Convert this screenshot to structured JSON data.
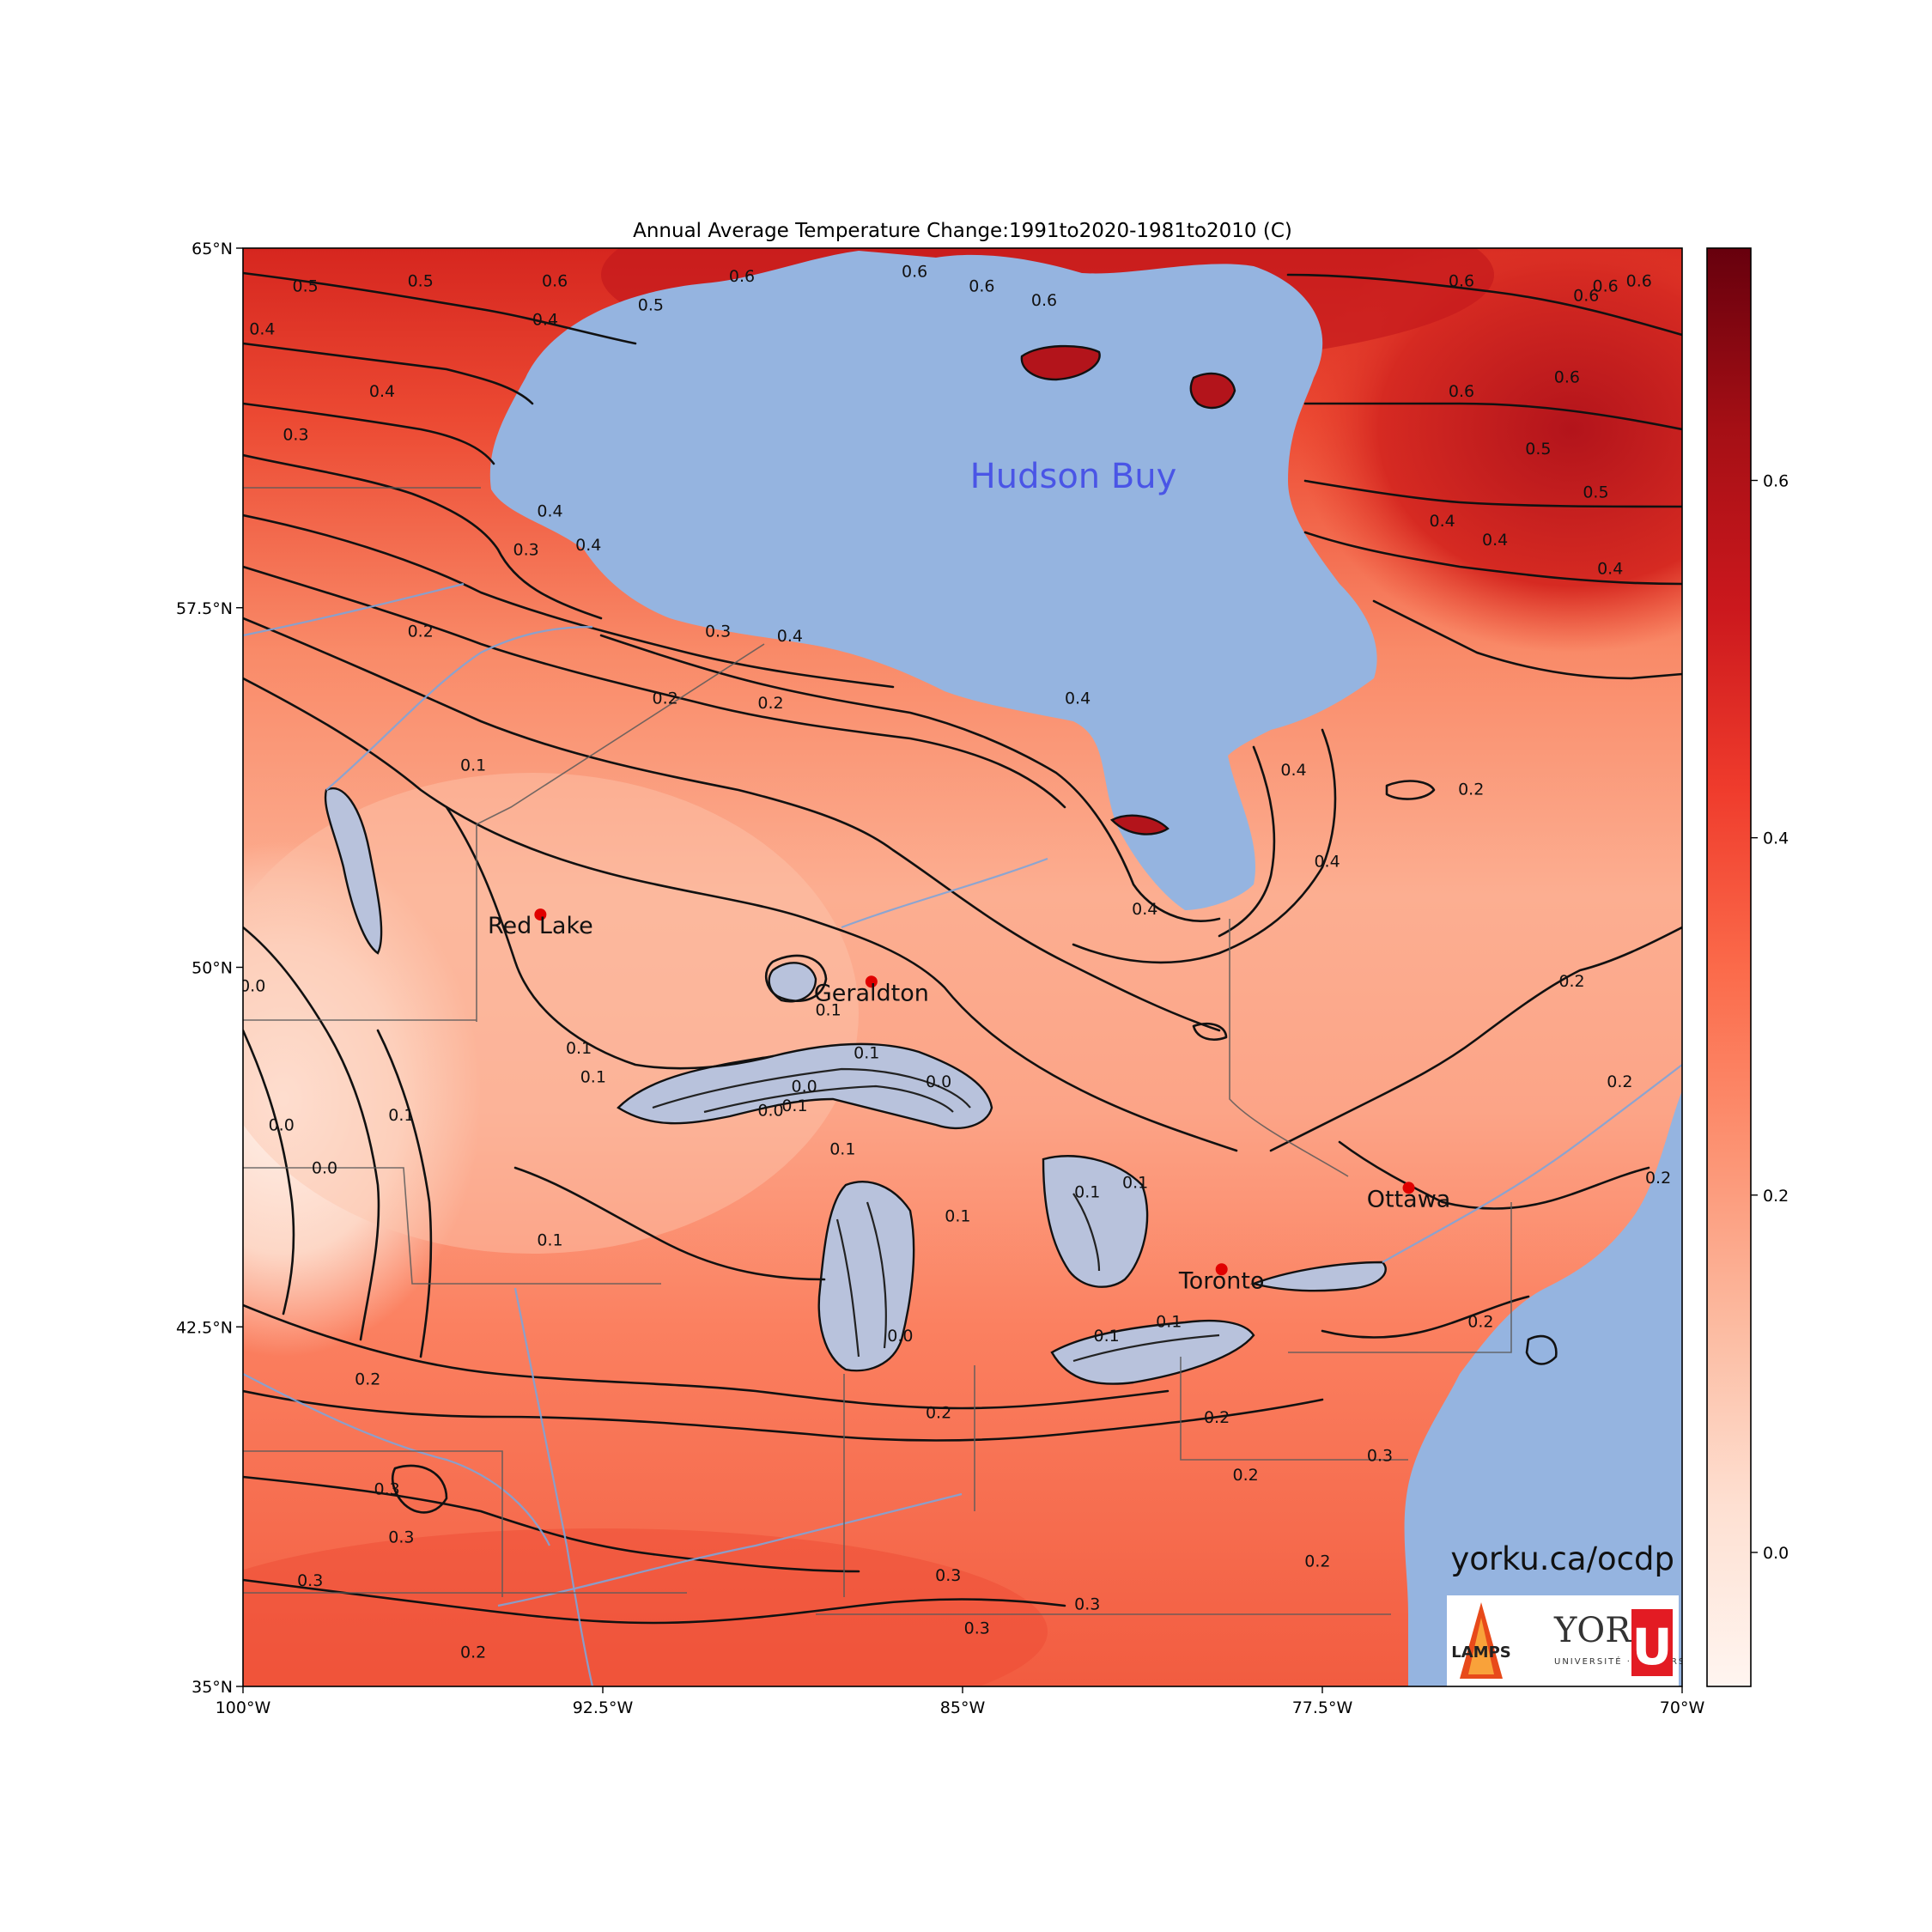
{
  "title": "Annual Average Temperature Change:1991to2020-1981to2010 (C)",
  "map": {
    "lon_range": [
      -100,
      -70
    ],
    "lat_range": [
      35,
      65
    ],
    "x_ticks": [
      {
        "value": -100,
        "label": "100°W"
      },
      {
        "value": -92.5,
        "label": "92.5°W"
      },
      {
        "value": -85,
        "label": "85°W"
      },
      {
        "value": -77.5,
        "label": "77.5°W"
      },
      {
        "value": -70,
        "label": "70°W"
      }
    ],
    "y_ticks": [
      {
        "value": 35,
        "label": "35°N"
      },
      {
        "value": 42.5,
        "label": "42.5°N"
      },
      {
        "value": 50,
        "label": "50°N"
      },
      {
        "value": 57.5,
        "label": "57.5°N"
      },
      {
        "value": 65,
        "label": "65°N"
      }
    ],
    "cities": [
      {
        "name": "Red Lake",
        "lon": -93.8,
        "lat": 51.1
      },
      {
        "name": "Geraldton",
        "lon": -86.9,
        "lat": 49.7
      },
      {
        "name": "Ottawa",
        "lon": -75.7,
        "lat": 45.4
      },
      {
        "name": "Toronto",
        "lon": -79.6,
        "lat": 43.7
      }
    ],
    "water_label": "Hudson Buy",
    "contour_labels": [
      {
        "text": "0.5",
        "lon": -98.7,
        "lat": 64.1
      },
      {
        "text": "0.5",
        "lon": -96.3,
        "lat": 64.2
      },
      {
        "text": "0.6",
        "lon": -93.5,
        "lat": 64.2
      },
      {
        "text": "0.5",
        "lon": -91.5,
        "lat": 63.7
      },
      {
        "text": "0.4",
        "lon": -99.6,
        "lat": 63.2
      },
      {
        "text": "0.4",
        "lon": -93.7,
        "lat": 63.4
      },
      {
        "text": "0.6",
        "lon": -89.6,
        "lat": 64.3
      },
      {
        "text": "0.4",
        "lon": -97.1,
        "lat": 61.9
      },
      {
        "text": "0.3",
        "lon": -98.9,
        "lat": 61.0
      },
      {
        "text": "0.4",
        "lon": -93.6,
        "lat": 59.4
      },
      {
        "text": "0.4",
        "lon": -92.8,
        "lat": 58.7
      },
      {
        "text": "0.3",
        "lon": -94.1,
        "lat": 58.6
      },
      {
        "text": "0.2",
        "lon": -96.3,
        "lat": 56.9
      },
      {
        "text": "0.3",
        "lon": -90.1,
        "lat": 56.9
      },
      {
        "text": "0.2",
        "lon": -91.2,
        "lat": 55.5
      },
      {
        "text": "0.2",
        "lon": -89.0,
        "lat": 55.4
      },
      {
        "text": "0.4",
        "lon": -88.6,
        "lat": 56.8
      },
      {
        "text": "0.1",
        "lon": -95.2,
        "lat": 54.1
      },
      {
        "text": "0.4",
        "lon": -82.6,
        "lat": 55.5
      },
      {
        "text": "0.4",
        "lon": -78.1,
        "lat": 54.0
      },
      {
        "text": "0.4",
        "lon": -77.4,
        "lat": 52.1
      },
      {
        "text": "0.4",
        "lon": -81.2,
        "lat": 51.1
      },
      {
        "text": "0.2",
        "lon": -74.4,
        "lat": 53.6
      },
      {
        "text": "0.6",
        "lon": -72.0,
        "lat": 63.9
      },
      {
        "text": "0.6",
        "lon": -70.9,
        "lat": 64.2
      },
      {
        "text": "0.6",
        "lon": -71.6,
        "lat": 64.1
      },
      {
        "text": "0.6",
        "lon": -74.6,
        "lat": 64.2
      },
      {
        "text": "0.6",
        "lon": -72.4,
        "lat": 62.2
      },
      {
        "text": "0.6",
        "lon": -74.6,
        "lat": 61.9
      },
      {
        "text": "0.5",
        "lon": -73.0,
        "lat": 60.7
      },
      {
        "text": "0.5",
        "lon": -71.8,
        "lat": 59.8
      },
      {
        "text": "0.4",
        "lon": -75.0,
        "lat": 59.2
      },
      {
        "text": "0.4",
        "lon": -73.9,
        "lat": 58.8
      },
      {
        "text": "0.4",
        "lon": -71.5,
        "lat": 58.2
      },
      {
        "text": "0.6",
        "lon": -86.0,
        "lat": 64.4
      },
      {
        "text": "0.6",
        "lon": -84.6,
        "lat": 64.1
      },
      {
        "text": "0.6",
        "lon": -83.3,
        "lat": 63.8
      },
      {
        "text": "0.1",
        "lon": -93.0,
        "lat": 48.2
      },
      {
        "text": "0.1",
        "lon": -92.7,
        "lat": 47.6
      },
      {
        "text": "0.0",
        "lon": -99.8,
        "lat": 49.5
      },
      {
        "text": "0.0",
        "lon": -99.2,
        "lat": 46.6
      },
      {
        "text": "0.0",
        "lon": -98.3,
        "lat": 45.7
      },
      {
        "text": "0.1",
        "lon": -96.7,
        "lat": 46.8
      },
      {
        "text": "0.1",
        "lon": -93.6,
        "lat": 44.2
      },
      {
        "text": "0.1",
        "lon": -87.8,
        "lat": 49.0
      },
      {
        "text": "0.1",
        "lon": -87.0,
        "lat": 48.1
      },
      {
        "text": "0.0",
        "lon": -88.3,
        "lat": 47.4
      },
      {
        "text": "0.0",
        "lon": -85.5,
        "lat": 47.5
      },
      {
        "text": "0.0",
        "lon": -89.0,
        "lat": 46.9
      },
      {
        "text": "0.1",
        "lon": -88.5,
        "lat": 47.0
      },
      {
        "text": "0.1",
        "lon": -87.5,
        "lat": 46.1
      },
      {
        "text": "0.1",
        "lon": -82.4,
        "lat": 45.2
      },
      {
        "text": "0.1",
        "lon": -81.4,
        "lat": 45.4
      },
      {
        "text": "0.1",
        "lon": -85.1,
        "lat": 44.7
      },
      {
        "text": "0.0",
        "lon": -86.3,
        "lat": 42.2
      },
      {
        "text": "0.1",
        "lon": -82.0,
        "lat": 42.2
      },
      {
        "text": "0.1",
        "lon": -80.7,
        "lat": 42.5
      },
      {
        "text": "0.2",
        "lon": -97.4,
        "lat": 41.3
      },
      {
        "text": "0.2",
        "lon": -85.5,
        "lat": 40.6
      },
      {
        "text": "0.3",
        "lon": -97.0,
        "lat": 39.0
      },
      {
        "text": "0.3",
        "lon": -96.7,
        "lat": 38.0
      },
      {
        "text": "0.3",
        "lon": -98.6,
        "lat": 37.1
      },
      {
        "text": "0.3",
        "lon": -85.3,
        "lat": 37.2
      },
      {
        "text": "0.3",
        "lon": -82.4,
        "lat": 36.6
      },
      {
        "text": "0.3",
        "lon": -84.7,
        "lat": 36.1
      },
      {
        "text": "0.2",
        "lon": -95.2,
        "lat": 35.6
      },
      {
        "text": "0.2",
        "lon": -79.7,
        "lat": 40.5
      },
      {
        "text": "0.2",
        "lon": -79.1,
        "lat": 39.3
      },
      {
        "text": "0.3",
        "lon": -76.3,
        "lat": 39.7
      },
      {
        "text": "0.2",
        "lon": -77.6,
        "lat": 37.5
      },
      {
        "text": "0.2",
        "lon": -74.2,
        "lat": 42.5
      },
      {
        "text": "0.2",
        "lon": -72.3,
        "lat": 49.6
      },
      {
        "text": "0.2",
        "lon": -71.3,
        "lat": 47.5
      },
      {
        "text": "0.2",
        "lon": -70.5,
        "lat": 45.5
      }
    ]
  },
  "colorbar": {
    "min": -0.075,
    "max": 0.73,
    "ticks": [
      {
        "value": 0.0,
        "label": "0.0"
      },
      {
        "value": 0.2,
        "label": "0.2"
      },
      {
        "value": 0.4,
        "label": "0.4"
      },
      {
        "value": 0.6,
        "label": "0.6"
      }
    ],
    "colors": [
      "#fff5f0",
      "#fee0d2",
      "#fcbba1",
      "#fc9272",
      "#fb6a4a",
      "#ef3b2c",
      "#cb181d",
      "#a50f15",
      "#67000d"
    ]
  },
  "colors": {
    "water": "#95b4e0",
    "lake_overlay": "#b8c2dc",
    "boundary": "#5a5a5a",
    "river": "#7fa4d8",
    "city_dot": "#e00000"
  },
  "credit": {
    "url": "yorku.ca/ocdp",
    "lamps_label": "LAMPS",
    "york_label": "YORK",
    "york_sub": "UNIVERSITÉ · UNIVERSITY",
    "york_mark": "U"
  }
}
